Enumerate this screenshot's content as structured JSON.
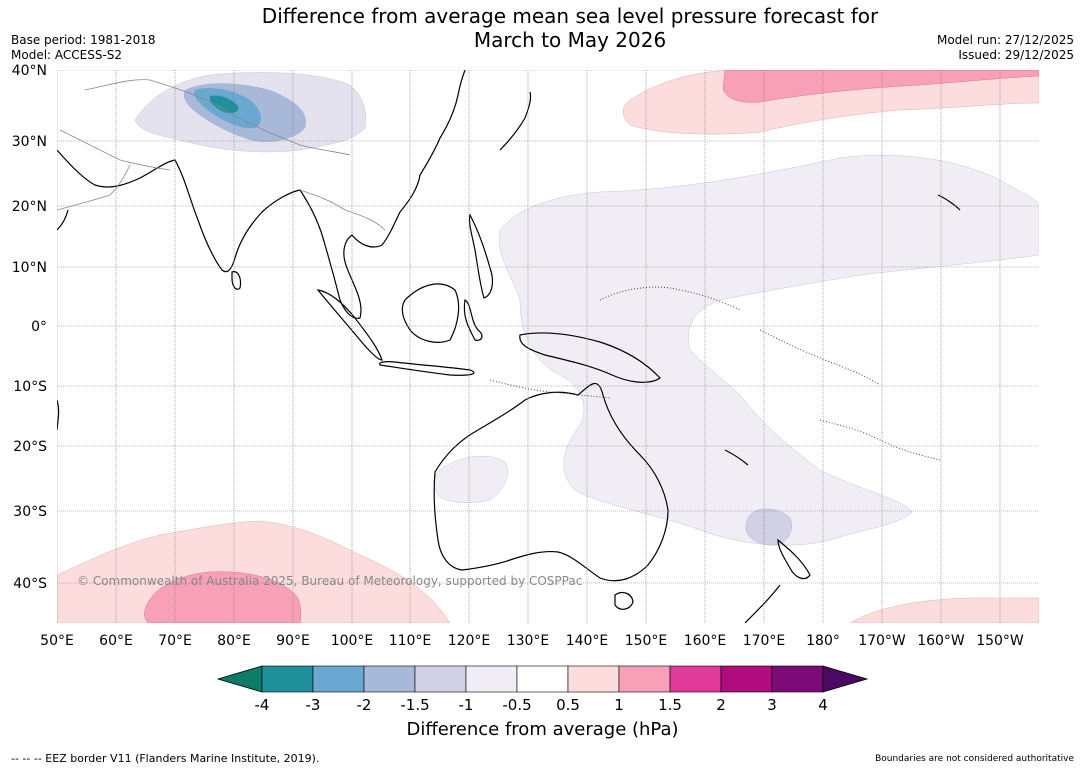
{
  "title_line1": "Difference from average mean sea level pressure forecast for",
  "title_line2": "March to May 2026",
  "base_period": "Base period: 1981-2018",
  "model": "Model: ACCESS-S2",
  "model_run": "Model run: 27/12/2025",
  "issued": "Issued: 29/12/2025",
  "copyright": "© Commonwealth of Australia 2025, Bureau of Meteorology, supported by COSPPac",
  "lat_labels": [
    "40°N",
    "30°N",
    "20°N",
    "10°N",
    "0°",
    "10°S",
    "20°S",
    "30°S",
    "40°S"
  ],
  "lon_labels": [
    "50°E",
    "60°E",
    "70°E",
    "80°E",
    "90°E",
    "100°E",
    "110°E",
    "120°E",
    "130°E",
    "140°E",
    "150°E",
    "160°E",
    "170°E",
    "180°",
    "170°W",
    "160°W",
    "150°W"
  ],
  "colorbar": {
    "title": "Difference from average (hPa)",
    "tick_labels": [
      "-4",
      "-3",
      "-2",
      "-1.5",
      "-1",
      "-0.5",
      "0.5",
      "1",
      "1.5",
      "2",
      "3",
      "4"
    ],
    "colors": [
      "#0e7a68",
      "#1f8f99",
      "#6aa8d1",
      "#a8b8d8",
      "#d2d0e4",
      "#f1edf5",
      "#ffffff",
      "#fcdcdc",
      "#f7a0b8",
      "#df3a98",
      "#b10c7f",
      "#7d0b77",
      "#4a0a62"
    ]
  },
  "eez_note": "--  --  -- EEZ border V11 (Flanders Marine Institute, 2019).",
  "boundary_note": "Boundaries are not considered authoritative"
}
